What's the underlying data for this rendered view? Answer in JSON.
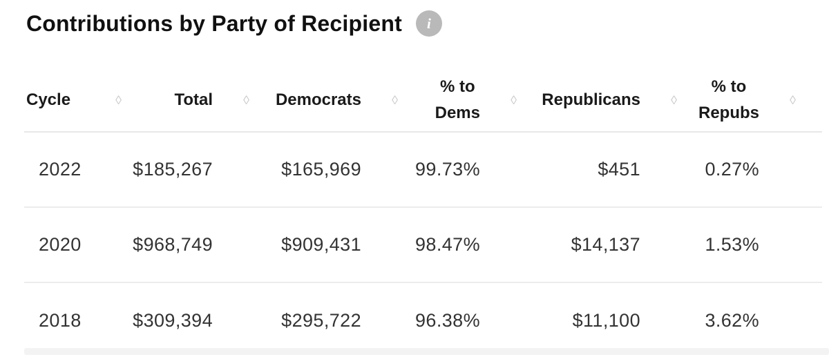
{
  "page": {
    "title": "Contributions by Party of Recipient",
    "info_icon_glyph": "i"
  },
  "colors": {
    "title_text": "#111111",
    "header_text": "#1a1a1a",
    "cell_text": "#333333",
    "divider": "#e8e8e8",
    "sort_icon": "#c9c9c9",
    "info_icon_bg": "#b9b9b9",
    "bottom_band": "#f3f3f3"
  },
  "table": {
    "sort_icon_glyph": "◊",
    "columns": [
      {
        "id": "cycle",
        "label": "Cycle"
      },
      {
        "id": "total",
        "label": "Total"
      },
      {
        "id": "democrats",
        "label": "Democrats"
      },
      {
        "id": "pct_dems",
        "label": "% to",
        "label_line2": "Dems"
      },
      {
        "id": "republicans",
        "label": "Republicans"
      },
      {
        "id": "pct_repubs",
        "label": "% to",
        "label_line2": "Repubs"
      }
    ],
    "rows": [
      {
        "cycle": "2022",
        "total": "$185,267",
        "democrats": "$165,969",
        "pct_dems": "99.73%",
        "republicans": "$451",
        "pct_repubs": "0.27%"
      },
      {
        "cycle": "2020",
        "total": "$968,749",
        "democrats": "$909,431",
        "pct_dems": "98.47%",
        "republicans": "$14,137",
        "pct_repubs": "1.53%"
      },
      {
        "cycle": "2018",
        "total": "$309,394",
        "democrats": "$295,722",
        "pct_dems": "96.38%",
        "republicans": "$11,100",
        "pct_repubs": "3.62%"
      }
    ]
  }
}
